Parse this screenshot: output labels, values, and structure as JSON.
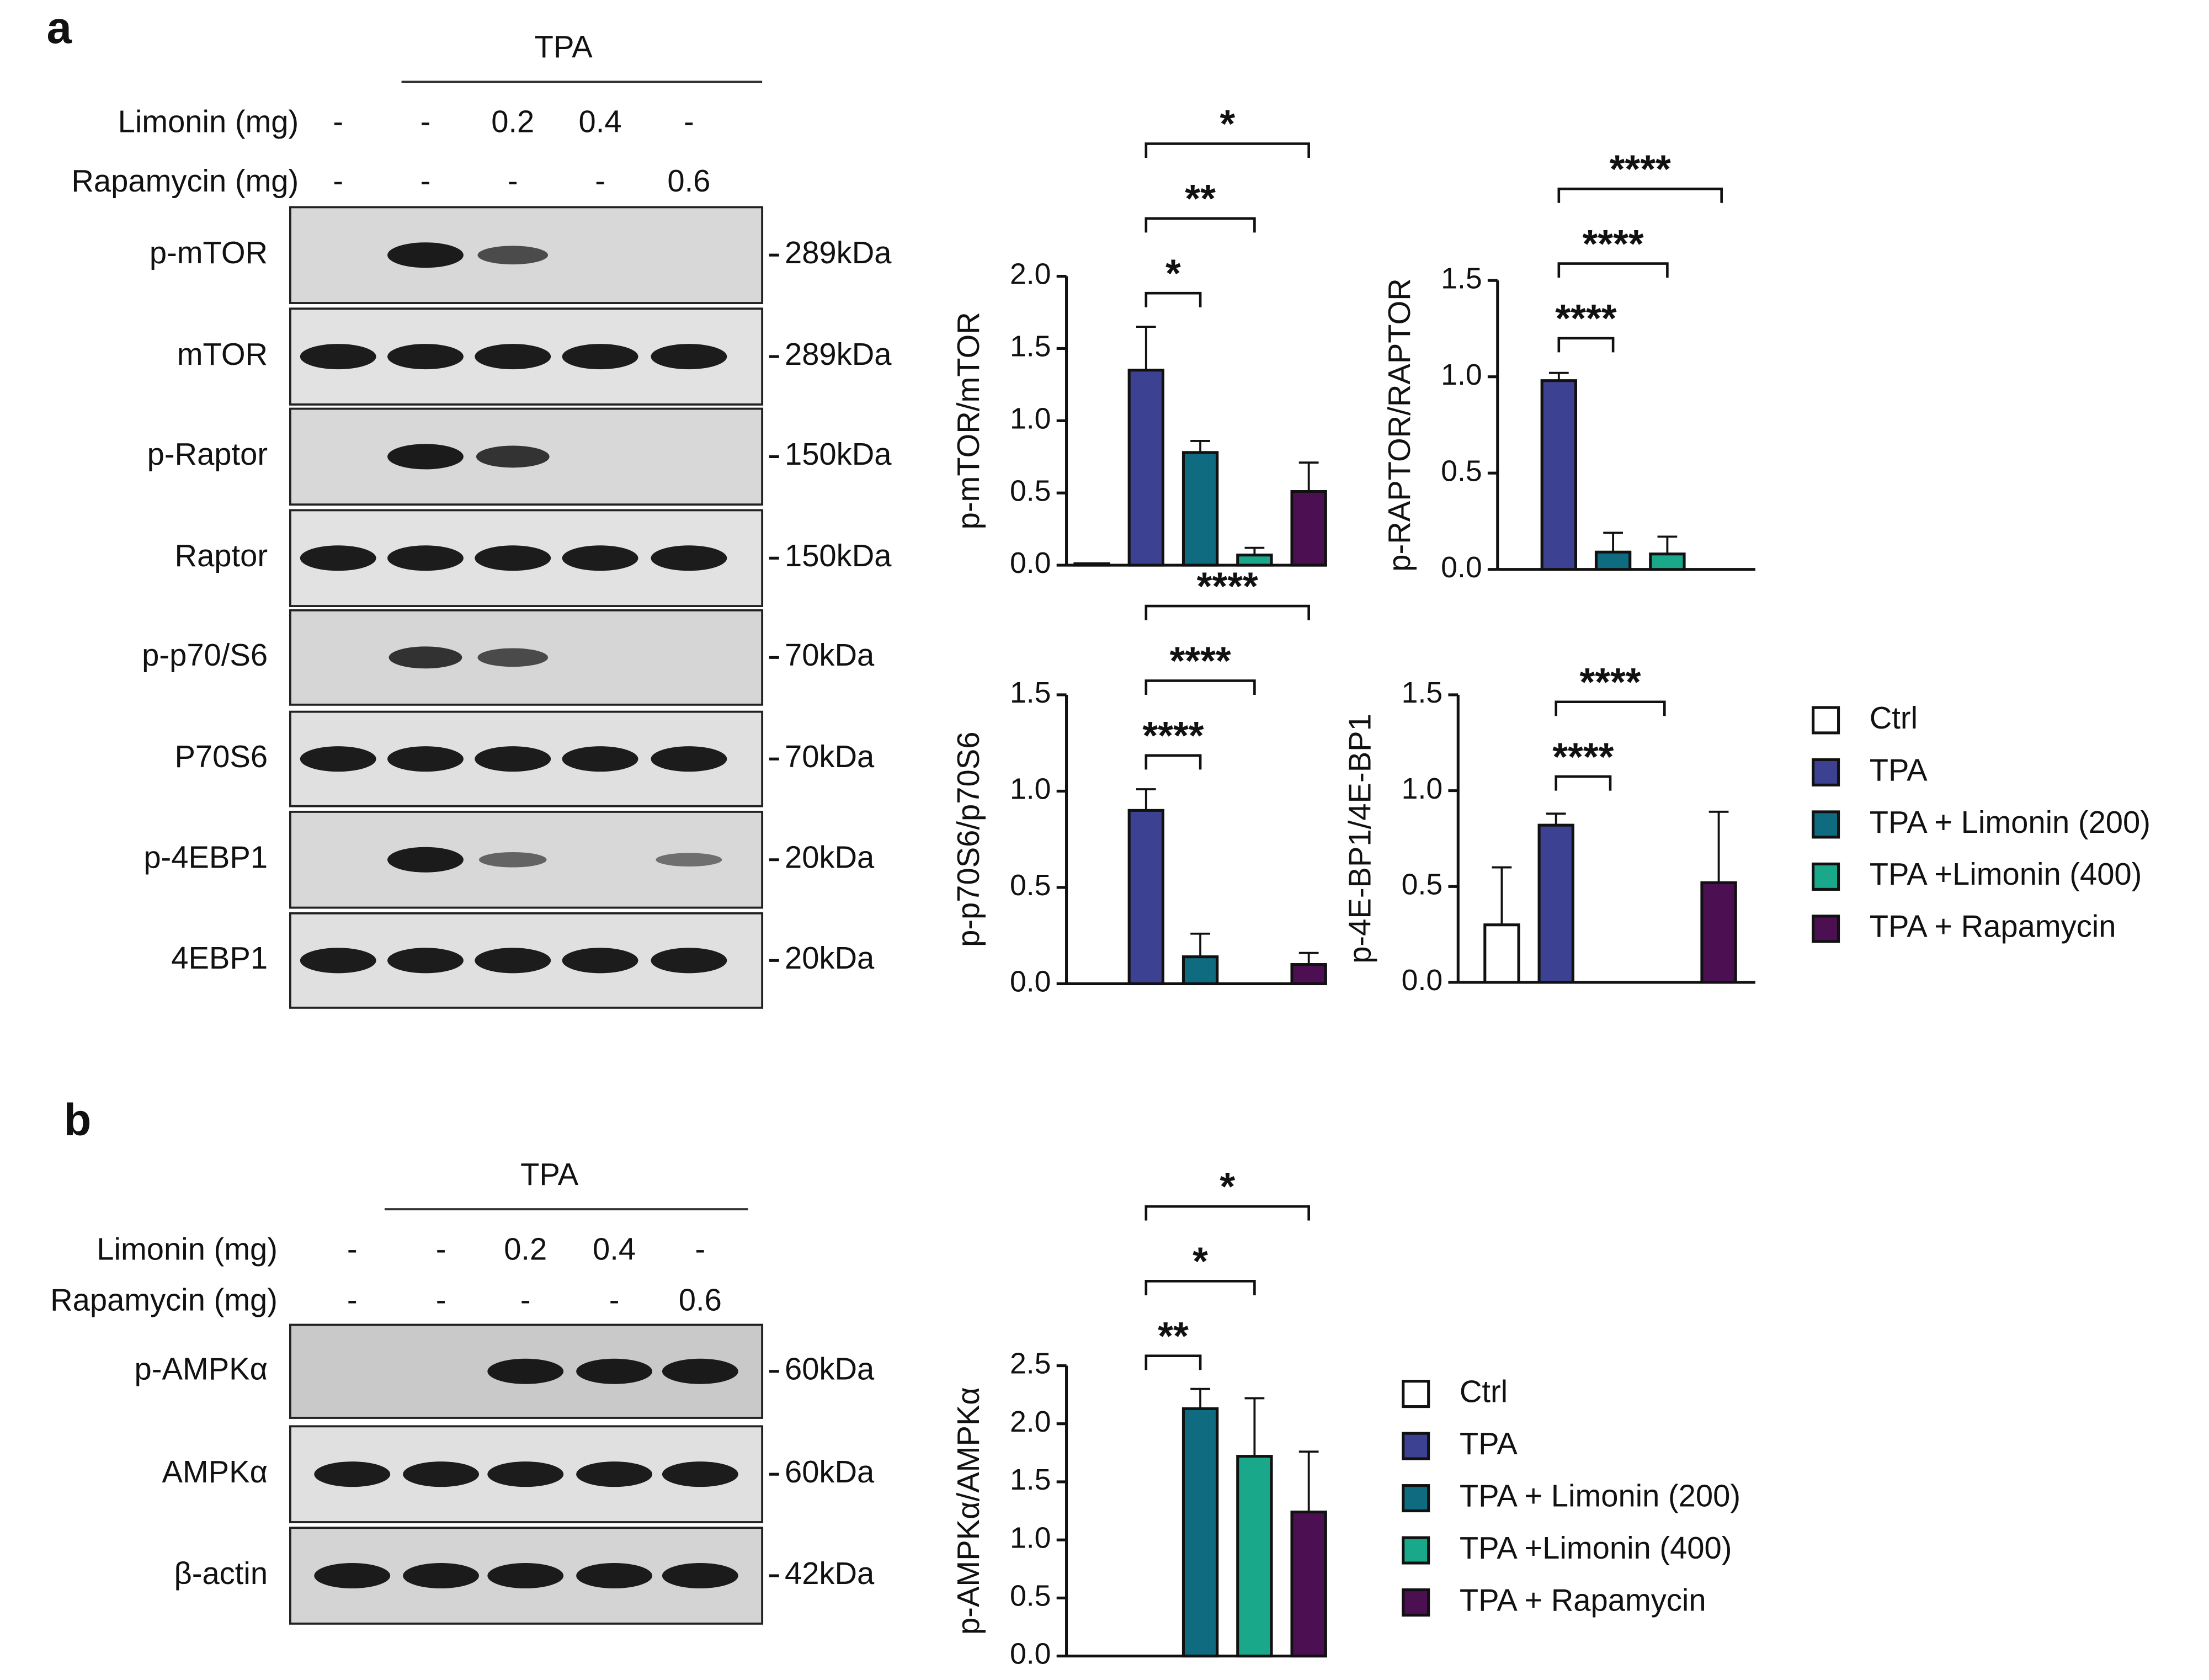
{
  "panel_labels": [
    "a",
    "b"
  ],
  "blot_a": {
    "group_label": "TPA",
    "conditions": [
      {
        "label": "Limonin (mg)",
        "values": [
          "-",
          "-",
          "0.2",
          "0.4",
          "-"
        ]
      },
      {
        "label": "Rapamycin (mg)",
        "values": [
          "-",
          "-",
          "-",
          "-",
          "0.6"
        ]
      }
    ],
    "rows": [
      {
        "name": "p-mTOR",
        "size": "289kDa"
      },
      {
        "name": "mTOR",
        "size": "289kDa"
      },
      {
        "name": "p-Raptor",
        "size": "150kDa"
      },
      {
        "name": "Raptor",
        "size": "150kDa"
      },
      {
        "name": "p-p70/S6",
        "size": "70kDa"
      },
      {
        "name": "P70S6",
        "size": "70kDa"
      },
      {
        "name": "p-4EBP1",
        "size": "20kDa"
      },
      {
        "name": "4EBP1",
        "size": "20kDa"
      }
    ]
  },
  "blot_b": {
    "group_label": "TPA",
    "conditions": [
      {
        "label": "Limonin (mg)",
        "values": [
          "-",
          "-",
          "0.2",
          "0.4",
          "-"
        ]
      },
      {
        "label": "Rapamycin (mg)",
        "values": [
          "-",
          "-",
          "-",
          "-",
          "0.6"
        ]
      }
    ],
    "rows": [
      {
        "name": "p-AMPKα",
        "size": "60kDa"
      },
      {
        "name": "AMPKα",
        "size": "60kDa"
      },
      {
        "name": "β-actin",
        "size": "42kDa"
      }
    ]
  },
  "chart_data": [
    {
      "type": "bar",
      "ylabel": "p-mTOR/mTOR",
      "categories": [
        "Ctrl",
        "TPA",
        "TPA + Limonin (200)",
        "TPA +Limonin (400)",
        "TPA + Rapamycin"
      ],
      "colors": [
        "#ffffff",
        "#3d4191",
        "#0f6b80",
        "#1aa88a",
        "#4b0f52"
      ],
      "values": [
        0.01,
        1.35,
        0.78,
        0.07,
        0.51
      ],
      "errors": [
        0,
        0.3,
        0.08,
        0.05,
        0.2
      ],
      "ylim": [
        0,
        2
      ],
      "yticks": [
        {
          "value": 0,
          "label": "0.0"
        },
        0.5,
        {
          "value": 1,
          "label": "1.0"
        },
        1.5,
        {
          "value": 2,
          "label": "2.0"
        }
      ],
      "significance": [
        {
          "pair": [
            1,
            2
          ],
          "label": "*"
        },
        {
          "pair": [
            1,
            3
          ],
          "label": "**"
        },
        {
          "pair": [
            1,
            4
          ],
          "label": "*"
        }
      ]
    },
    {
      "type": "bar",
      "ylabel": "p-RAPTOR/RAPTOR",
      "categories": [
        "Ctrl",
        "TPA",
        "TPA + Limonin (200)",
        "TPA +Limonin (400)",
        "TPA + Rapamycin"
      ],
      "colors": [
        "#ffffff",
        "#3d4191",
        "#0f6b80",
        "#1aa88a",
        "#4b0f52"
      ],
      "values": [
        null,
        0.98,
        0.09,
        0.08,
        null
      ],
      "errors": [
        null,
        0.04,
        0.1,
        0.09,
        null
      ],
      "ylim": [
        0,
        1.5
      ],
      "yticks": [
        {
          "value": 0,
          "label": "0.0"
        },
        0.5,
        {
          "value": 1,
          "label": "1.0"
        },
        1.5
      ],
      "significance": [
        {
          "pair": [
            1,
            2
          ],
          "label": "****"
        },
        {
          "pair": [
            1,
            3
          ],
          "label": "****"
        },
        {
          "pair": [
            1,
            4
          ],
          "label": "****"
        }
      ]
    },
    {
      "type": "bar",
      "ylabel": "p-p70S6/p70S6",
      "categories": [
        "Ctrl",
        "TPA",
        "TPA + Limonin (200)",
        "TPA +Limonin (400)",
        "TPA + Rapamycin"
      ],
      "colors": [
        "#ffffff",
        "#3d4191",
        "#0f6b80",
        "#1aa88a",
        "#4b0f52"
      ],
      "values": [
        null,
        0.9,
        0.14,
        null,
        0.1
      ],
      "errors": [
        null,
        0.11,
        0.12,
        null,
        0.06
      ],
      "ylim": [
        0,
        1.5
      ],
      "yticks": [
        {
          "value": 0,
          "label": "0.0"
        },
        0.5,
        {
          "value": 1,
          "label": "1.0"
        },
        1.5
      ],
      "significance": [
        {
          "pair": [
            1,
            2
          ],
          "label": "****"
        },
        {
          "pair": [
            1,
            3
          ],
          "label": "****"
        },
        {
          "pair": [
            1,
            4
          ],
          "label": "****"
        }
      ]
    },
    {
      "type": "bar",
      "ylabel": "p-4E-BP1/4E-BP1",
      "legend": "right",
      "categories": [
        "Ctrl",
        "TPA",
        "TPA + Limonin (200)",
        "TPA +Limonin (400)",
        "TPA + Rapamycin"
      ],
      "colors": [
        "#ffffff",
        "#3d4191",
        "#0f6b80",
        "#1aa88a",
        "#4b0f52"
      ],
      "values": [
        0.3,
        0.82,
        null,
        null,
        0.52
      ],
      "errors": [
        0.3,
        0.06,
        null,
        null,
        0.37
      ],
      "ylim": [
        0,
        1.5
      ],
      "yticks": [
        {
          "value": 0,
          "label": "0.0"
        },
        0.5,
        {
          "value": 1,
          "label": "1.0"
        },
        1.5
      ],
      "significance": [
        {
          "pair": [
            1,
            2
          ],
          "label": "****"
        },
        {
          "pair": [
            1,
            3
          ],
          "label": "****"
        }
      ]
    },
    {
      "type": "bar",
      "ylabel": "p-AMPKα/AMPKα",
      "legend": "right",
      "categories": [
        "Ctrl",
        "TPA",
        "TPA + Limonin (200)",
        "TPA +Limonin (400)",
        "TPA + Rapamycin"
      ],
      "colors": [
        "#ffffff",
        "#3d4191",
        "#0f6b80",
        "#1aa88a",
        "#4b0f52"
      ],
      "values": [
        null,
        null,
        2.13,
        1.72,
        1.24
      ],
      "errors": [
        null,
        null,
        0.17,
        0.5,
        0.52
      ],
      "ylim": [
        0,
        2.5
      ],
      "yticks": [
        {
          "value": 0,
          "label": "0.0"
        },
        0.5,
        {
          "value": 1,
          "label": "1.0"
        },
        1.5,
        {
          "value": 2,
          "label": "2.0"
        },
        2.5
      ],
      "significance": [
        {
          "pair": [
            1,
            2
          ],
          "label": "**"
        },
        {
          "pair": [
            1,
            3
          ],
          "label": "*"
        },
        {
          "pair": [
            1,
            4
          ],
          "label": "*"
        }
      ]
    }
  ]
}
